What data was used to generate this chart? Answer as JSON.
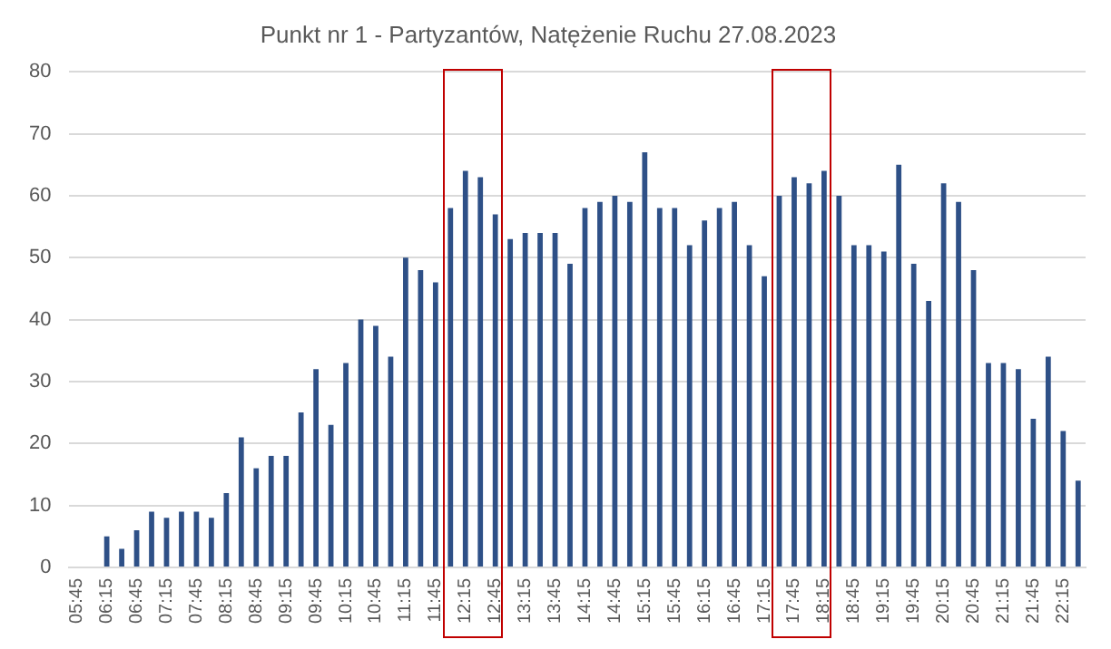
{
  "chart_data": {
    "type": "bar",
    "title": "Punkt nr 1 - Partyzantów, Natężenie Ruchu 27.08.2023",
    "categories": [
      "05:45",
      null,
      "06:15",
      null,
      "06:45",
      null,
      "07:15",
      null,
      "07:45",
      null,
      "08:15",
      null,
      "08:45",
      null,
      "09:15",
      null,
      "09:45",
      null,
      "10:15",
      null,
      "10:45",
      null,
      "11:15",
      null,
      "11:45",
      null,
      "12:15",
      null,
      "12:45",
      null,
      "13:15",
      null,
      "13:45",
      null,
      "14:15",
      null,
      "14:45",
      null,
      "15:15",
      null,
      "15:45",
      null,
      "16:15",
      null,
      "16:45",
      null,
      "17:15",
      null,
      "17:45",
      null,
      "18:15",
      null,
      "18:45",
      null,
      "19:15",
      null,
      "19:45",
      null,
      "20:15",
      null,
      "20:45",
      null,
      "21:15",
      null,
      "21:45",
      null,
      "22:15",
      null
    ],
    "values": [
      0,
      0,
      5,
      3,
      6,
      9,
      8,
      9,
      9,
      8,
      12,
      21,
      16,
      18,
      18,
      25,
      32,
      23,
      33,
      40,
      39,
      34,
      50,
      48,
      46,
      58,
      64,
      63,
      57,
      53,
      54,
      54,
      54,
      49,
      58,
      59,
      60,
      59,
      67,
      58,
      58,
      52,
      56,
      58,
      59,
      52,
      47,
      60,
      63,
      62,
      64,
      60,
      52,
      52,
      51,
      65,
      49,
      43,
      62,
      59,
      48,
      33,
      33,
      32,
      24,
      34,
      22,
      14
    ],
    "color": "#2e5087",
    "ylim": [
      0,
      80
    ],
    "yticks": [
      0,
      10,
      20,
      30,
      40,
      50,
      60,
      70,
      80
    ],
    "grid": "y",
    "legend": false
  }
}
